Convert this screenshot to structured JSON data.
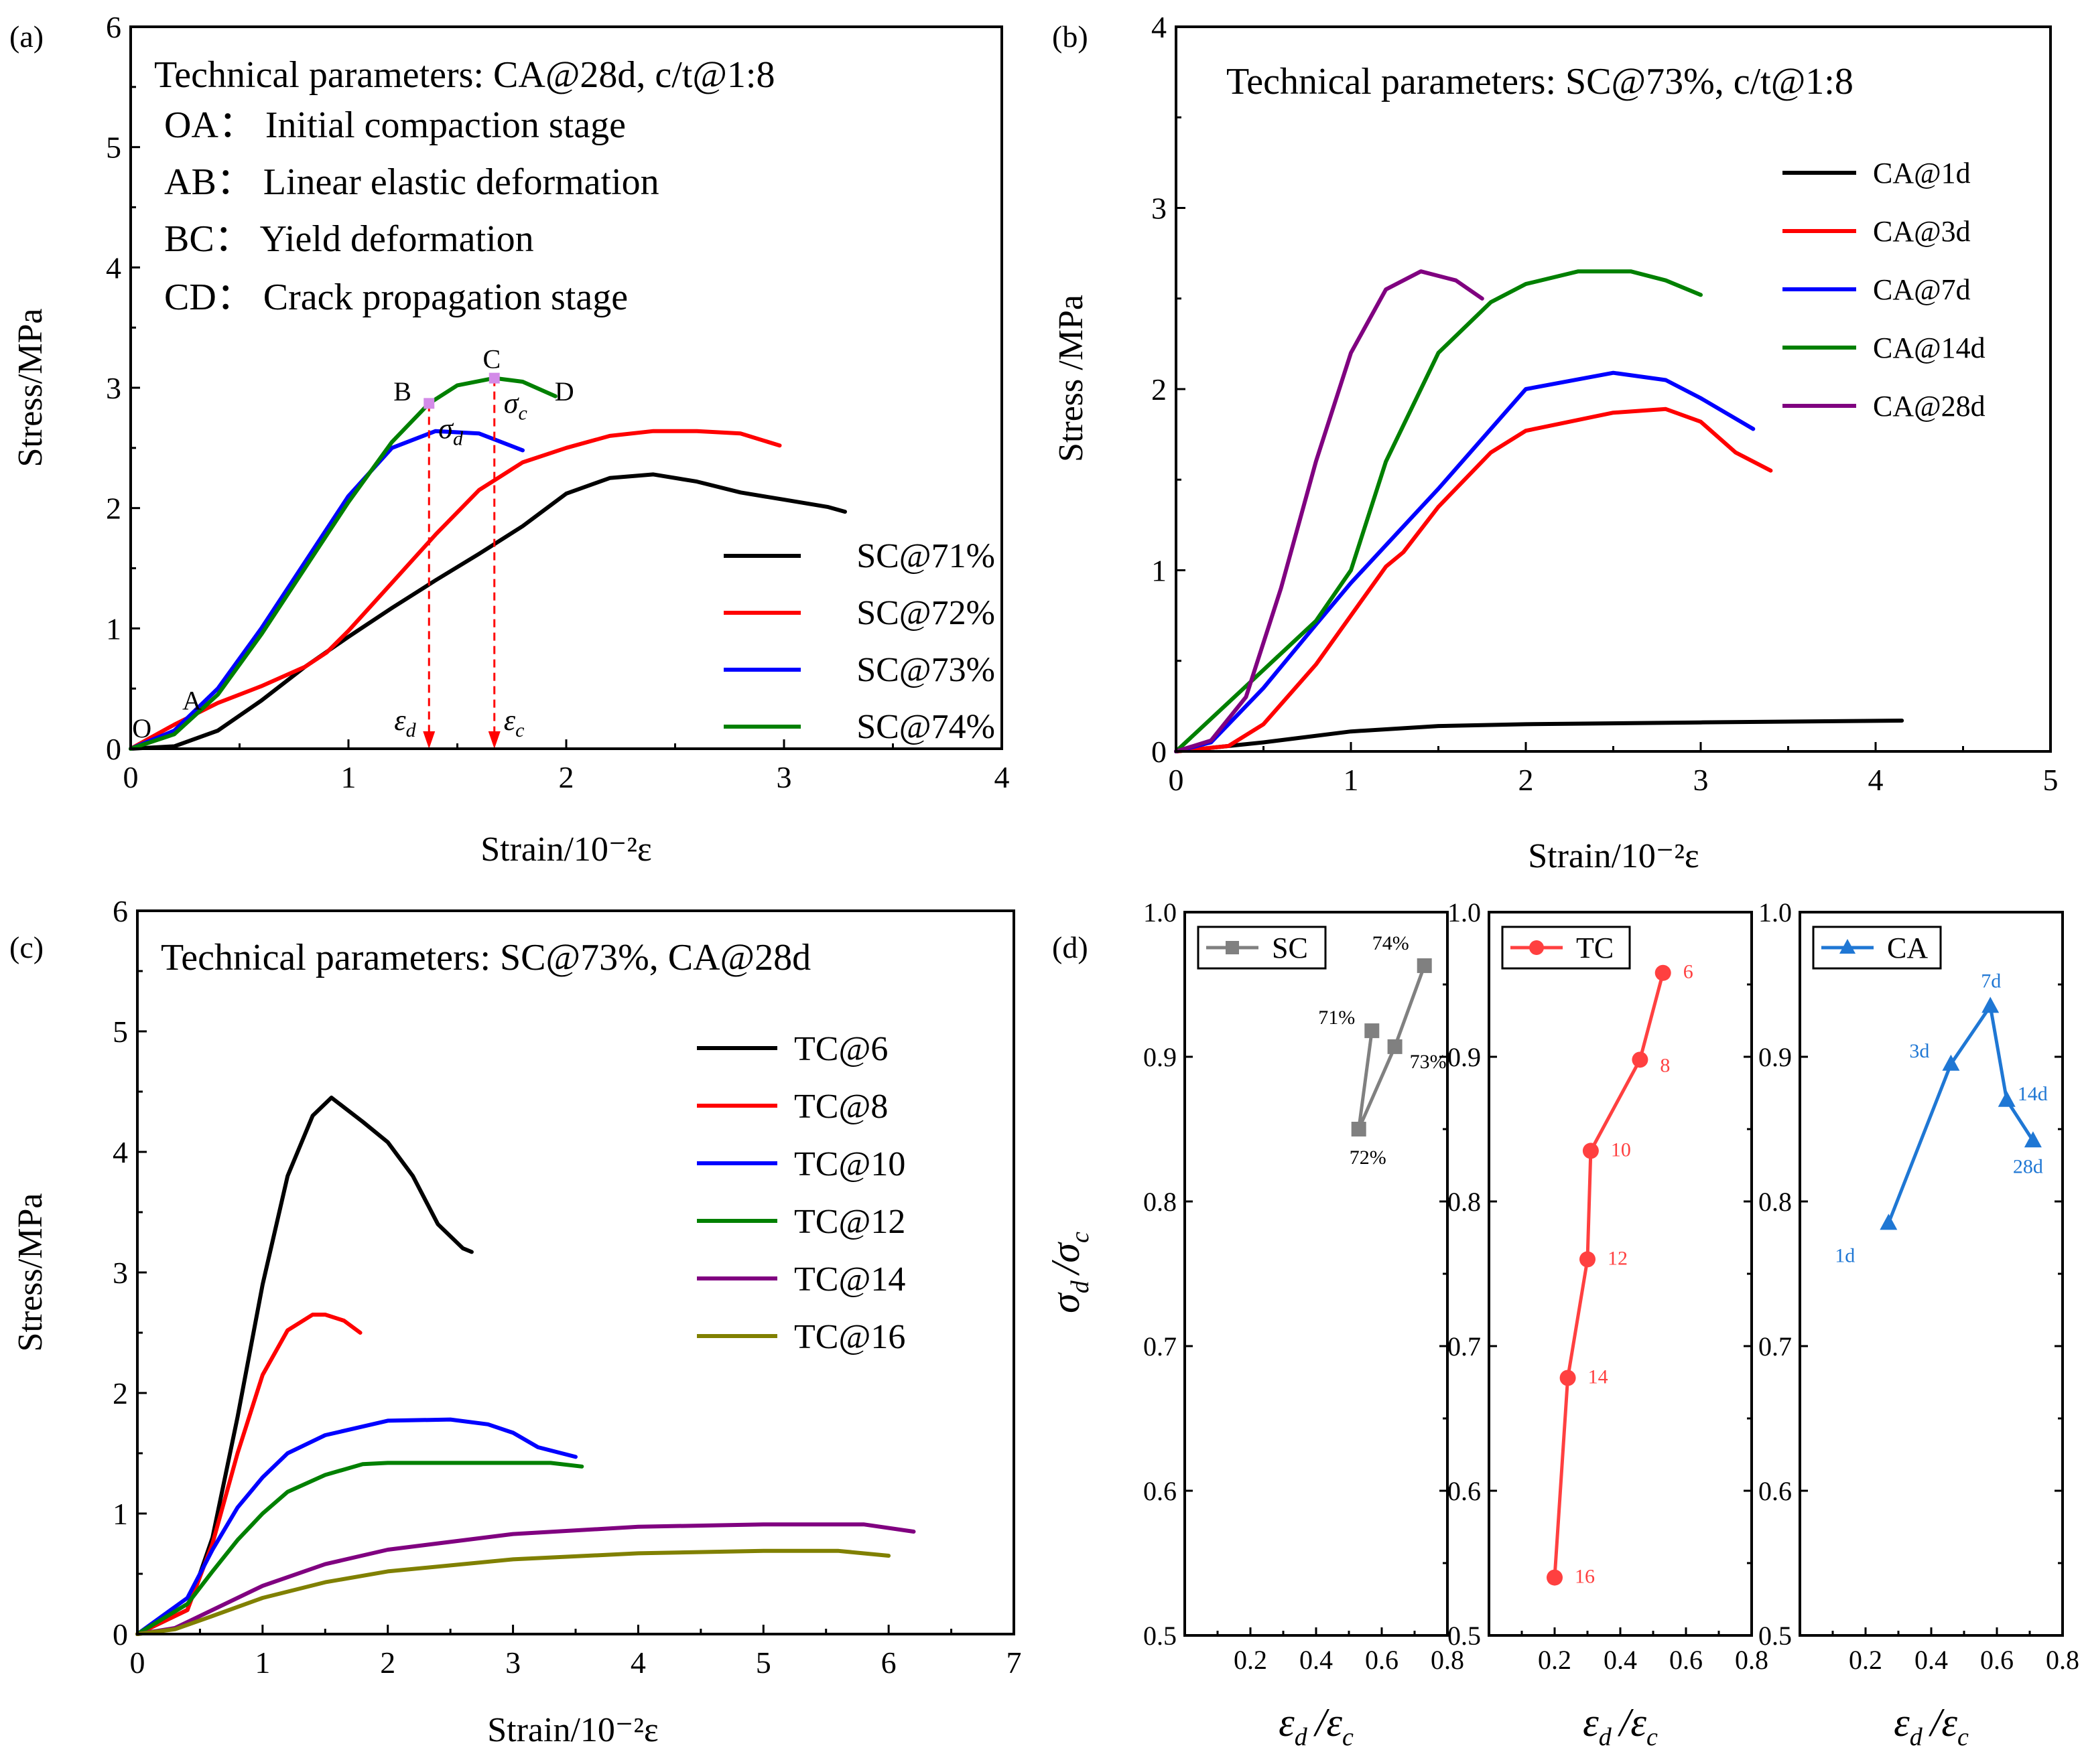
{
  "chart_data": [
    {
      "panel": "(a)",
      "type": "line",
      "title": "Technical parameters: CA@28d, c/t@1:8",
      "stages": [
        "OA： Initial compaction stage",
        "AB： Linear elastic deformation",
        "BC： Yield deformation",
        "CD： Crack propagation stage"
      ],
      "xlabel": "Strain/10⁻²ε",
      "ylabel": "Stress/MPa",
      "xlim": [
        0,
        4
      ],
      "ylim": [
        0,
        6
      ],
      "xticks": [
        "0",
        "1",
        "2",
        "3",
        "4"
      ],
      "yticks": [
        "0",
        "1",
        "2",
        "3",
        "4",
        "5",
        "6"
      ],
      "legend_position": "bottom-right",
      "point_labels": [
        {
          "text": "O",
          "x": 0.05,
          "y": 0.15
        },
        {
          "text": "A",
          "x": 0.28,
          "y": 0.38
        },
        {
          "text": "B",
          "x": 1.25,
          "y": 2.95
        },
        {
          "text": "C",
          "x": 1.66,
          "y": 3.22
        },
        {
          "text": "D",
          "x": 1.99,
          "y": 2.95
        }
      ],
      "annotations": {
        "sigma_d": "σ",
        "sigma_d_sub": "d",
        "sigma_c": "σ",
        "sigma_c_sub": "c",
        "eps_d": "ε",
        "eps_d_sub": "d",
        "eps_c": "ε",
        "eps_c_sub": "c",
        "eps_d_x": 1.37,
        "eps_c_x": 1.67,
        "sigma_d_y": 2.87,
        "sigma_c_y": 3.08
      },
      "series": [
        {
          "name": "SC@71%",
          "color": "#000000",
          "x": [
            0,
            0.2,
            0.4,
            0.6,
            0.8,
            1.0,
            1.2,
            1.4,
            1.6,
            1.8,
            2.0,
            2.2,
            2.4,
            2.6,
            2.8,
            3.0,
            3.2,
            3.28
          ],
          "y": [
            0,
            0.02,
            0.15,
            0.4,
            0.68,
            0.93,
            1.17,
            1.4,
            1.62,
            1.85,
            2.12,
            2.25,
            2.28,
            2.22,
            2.13,
            2.07,
            2.01,
            1.97
          ]
        },
        {
          "name": "SC@72%",
          "color": "#ff0000",
          "x": [
            0,
            0.2,
            0.4,
            0.6,
            0.8,
            0.9,
            1.0,
            1.2,
            1.4,
            1.6,
            1.8,
            2.0,
            2.2,
            2.4,
            2.6,
            2.8,
            2.98
          ],
          "y": [
            0,
            0.2,
            0.38,
            0.52,
            0.68,
            0.8,
            0.98,
            1.38,
            1.78,
            2.15,
            2.38,
            2.5,
            2.6,
            2.64,
            2.64,
            2.62,
            2.52
          ]
        },
        {
          "name": "SC@73%",
          "color": "#0000ff",
          "x": [
            0,
            0.2,
            0.4,
            0.6,
            0.8,
            1.0,
            1.2,
            1.4,
            1.6,
            1.8
          ],
          "y": [
            0,
            0.15,
            0.5,
            1.0,
            1.55,
            2.1,
            2.5,
            2.64,
            2.62,
            2.48
          ]
        },
        {
          "name": "SC@74%",
          "color": "#008000",
          "x": [
            0,
            0.2,
            0.4,
            0.6,
            0.8,
            1.0,
            1.2,
            1.37,
            1.5,
            1.67,
            1.8,
            1.95
          ],
          "y": [
            0,
            0.12,
            0.45,
            0.95,
            1.5,
            2.05,
            2.55,
            2.87,
            3.02,
            3.08,
            3.05,
            2.93
          ]
        }
      ]
    },
    {
      "panel": "(b)",
      "type": "line",
      "title": "Technical parameters: SC@73%, c/t@1:8",
      "xlabel": "Strain/10⁻²ε",
      "ylabel": "Stress /MPa",
      "xlim": [
        0,
        5
      ],
      "ylim": [
        0,
        4
      ],
      "xticks": [
        "0",
        "1",
        "2",
        "3",
        "4",
        "5"
      ],
      "yticks": [
        "0",
        "1",
        "2",
        "3",
        "4"
      ],
      "legend_position": "top-right",
      "series": [
        {
          "name": "CA@1d",
          "color": "#000000",
          "x": [
            0,
            0.2,
            0.5,
            1.0,
            1.5,
            2.0,
            3.0,
            4.15
          ],
          "y": [
            0,
            0.02,
            0.05,
            0.11,
            0.14,
            0.15,
            0.16,
            0.17
          ]
        },
        {
          "name": "CA@3d",
          "color": "#ff0000",
          "x": [
            0,
            0.3,
            0.5,
            0.8,
            1.0,
            1.2,
            1.3,
            1.5,
            1.8,
            2.0,
            2.5,
            2.8,
            3.0,
            3.2,
            3.4
          ],
          "y": [
            0,
            0.03,
            0.15,
            0.48,
            0.75,
            1.02,
            1.1,
            1.35,
            1.65,
            1.77,
            1.87,
            1.89,
            1.82,
            1.65,
            1.55
          ]
        },
        {
          "name": "CA@7d",
          "color": "#0000ff",
          "x": [
            0,
            0.2,
            0.5,
            0.8,
            1.0,
            1.5,
            2.0,
            2.5,
            2.8,
            3.0,
            3.3
          ],
          "y": [
            0,
            0.05,
            0.35,
            0.7,
            0.93,
            1.45,
            2.0,
            2.09,
            2.05,
            1.95,
            1.78
          ]
        },
        {
          "name": "CA@14d",
          "color": "#008000",
          "x": [
            0,
            0.2,
            0.5,
            0.8,
            1.0,
            1.2,
            1.5,
            1.8,
            2.0,
            2.3,
            2.6,
            2.8,
            3.0
          ],
          "y": [
            0,
            0.18,
            0.45,
            0.72,
            1.0,
            1.6,
            2.2,
            2.48,
            2.58,
            2.65,
            2.65,
            2.6,
            2.52
          ]
        },
        {
          "name": "CA@28d",
          "color": "#800080",
          "x": [
            0,
            0.2,
            0.4,
            0.6,
            0.8,
            1.0,
            1.2,
            1.4,
            1.6,
            1.75
          ],
          "y": [
            0,
            0.06,
            0.3,
            0.9,
            1.6,
            2.2,
            2.55,
            2.65,
            2.6,
            2.5
          ]
        }
      ]
    },
    {
      "panel": "(c)",
      "type": "line",
      "title": "Technical parameters: SC@73%, CA@28d",
      "xlabel": "Strain/10⁻²ε",
      "ylabel": "Stress/MPa",
      "xlim": [
        0,
        7
      ],
      "ylim": [
        0,
        6
      ],
      "xticks": [
        "0",
        "1",
        "2",
        "3",
        "4",
        "5",
        "6",
        "7"
      ],
      "yticks": [
        "0",
        "1",
        "2",
        "3",
        "4",
        "5",
        "6"
      ],
      "legend_position": "top-right",
      "series": [
        {
          "name": "TC@6",
          "color": "#000000",
          "x": [
            0,
            0.4,
            0.6,
            0.8,
            1.0,
            1.2,
            1.4,
            1.55,
            1.8,
            2.0,
            2.2,
            2.4,
            2.6,
            2.67
          ],
          "y": [
            0,
            0.2,
            0.8,
            1.8,
            2.9,
            3.8,
            4.3,
            4.45,
            4.25,
            4.08,
            3.8,
            3.4,
            3.2,
            3.17
          ]
        },
        {
          "name": "TC@8",
          "color": "#ff0000",
          "x": [
            0,
            0.4,
            0.6,
            0.8,
            1.0,
            1.2,
            1.4,
            1.5,
            1.65,
            1.78
          ],
          "y": [
            0,
            0.2,
            0.75,
            1.5,
            2.15,
            2.52,
            2.65,
            2.65,
            2.6,
            2.5
          ]
        },
        {
          "name": "TC@10",
          "color": "#0000ff",
          "x": [
            0,
            0.4,
            0.6,
            0.8,
            1.0,
            1.2,
            1.5,
            2.0,
            2.5,
            2.8,
            3.0,
            3.2,
            3.5
          ],
          "y": [
            0,
            0.3,
            0.7,
            1.05,
            1.3,
            1.5,
            1.65,
            1.77,
            1.78,
            1.74,
            1.67,
            1.55,
            1.47
          ]
        },
        {
          "name": "TC@12",
          "color": "#008000",
          "x": [
            0,
            0.4,
            0.6,
            0.8,
            1.0,
            1.2,
            1.5,
            1.8,
            2.0,
            2.5,
            3.0,
            3.3,
            3.55
          ],
          "y": [
            0,
            0.25,
            0.52,
            0.78,
            1.0,
            1.18,
            1.32,
            1.41,
            1.42,
            1.42,
            1.42,
            1.42,
            1.39
          ]
        },
        {
          "name": "TC@14",
          "color": "#800080",
          "x": [
            0,
            0.3,
            0.6,
            1.0,
            1.5,
            2.0,
            3.0,
            4.0,
            5.0,
            5.8,
            6.2
          ],
          "y": [
            0,
            0.05,
            0.2,
            0.4,
            0.58,
            0.7,
            0.83,
            0.89,
            0.91,
            0.91,
            0.85
          ]
        },
        {
          "name": "TC@16",
          "color": "#808000",
          "x": [
            0,
            0.3,
            0.6,
            1.0,
            1.5,
            2.0,
            3.0,
            4.0,
            5.0,
            5.6,
            6.0
          ],
          "y": [
            0,
            0.04,
            0.15,
            0.3,
            0.43,
            0.52,
            0.62,
            0.67,
            0.69,
            0.69,
            0.65
          ]
        }
      ]
    },
    {
      "panel": "(d)",
      "type": "line",
      "ylabel_main": "σ",
      "ylabel_sub": "d",
      "ylabel_slash": "/σ",
      "ylabel_sub2": "c",
      "xlabel_main": "ε",
      "xlabel_sub": "d",
      "xlabel_slash": "/ε",
      "xlabel_sub2": "c",
      "xlim": [
        0,
        0.8
      ],
      "ylim": [
        0.5,
        1.0
      ],
      "xticks": [
        "0.2",
        "0.4",
        "0.6",
        "0.8"
      ],
      "yticks": [
        "0.5",
        "0.6",
        "0.7",
        "0.8",
        "0.9",
        "1.0"
      ],
      "legend_position": "top-left",
      "subplots": [
        {
          "name": "SC",
          "color": "#808080",
          "marker": "square",
          "x": [
            0.57,
            0.53,
            0.64,
            0.73
          ],
          "y": [
            0.918,
            0.85,
            0.907,
            0.963
          ],
          "labels": [
            "71%",
            "72%",
            "73%",
            "74%"
          ]
        },
        {
          "name": "TC",
          "color": "#ff4040",
          "marker": "circle",
          "x": [
            0.53,
            0.46,
            0.31,
            0.3,
            0.24,
            0.2
          ],
          "y": [
            0.958,
            0.898,
            0.835,
            0.76,
            0.678,
            0.54
          ],
          "labels": [
            "6",
            "8",
            "10",
            "12",
            "14",
            "16"
          ]
        },
        {
          "name": "CA",
          "color": "#1f77d4",
          "marker": "triangle",
          "x": [
            0.27,
            0.46,
            0.58,
            0.63,
            0.71
          ],
          "y": [
            0.785,
            0.895,
            0.935,
            0.87,
            0.842
          ],
          "labels": [
            "1d",
            "3d",
            "7d",
            "14d",
            "28d"
          ]
        }
      ]
    }
  ]
}
